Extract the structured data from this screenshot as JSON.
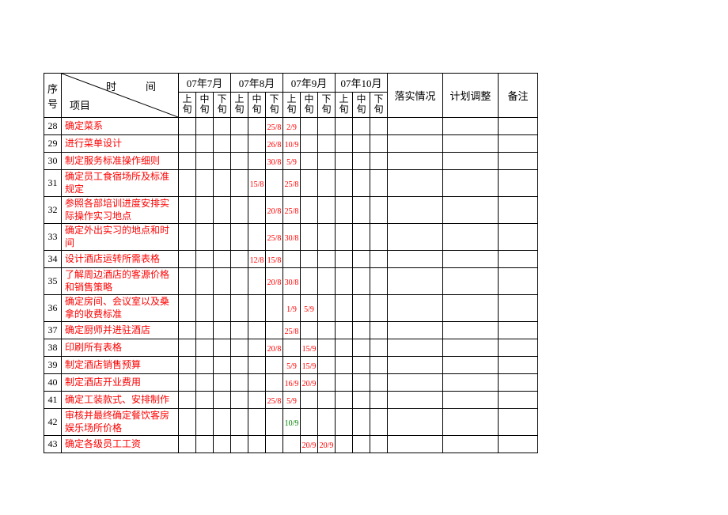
{
  "header": {
    "seq": "序号",
    "time_label": "时　间",
    "proj_label": "项目",
    "months": [
      "07年7月",
      "07年8月",
      "07年9月",
      "07年10月"
    ],
    "xun": [
      "上旬",
      "中旬",
      "下旬"
    ],
    "ls": "落实情况",
    "jh": "计划调整",
    "bz": "备注"
  },
  "rows": [
    {
      "seq": "28",
      "proj": "确定菜系",
      "dates": {
        "5": "25/8",
        "6": "2/9"
      },
      "h": false
    },
    {
      "seq": "29",
      "proj": "进行菜单设计",
      "dates": {
        "5": "26/8",
        "6": "10/9"
      },
      "h": false
    },
    {
      "seq": "30",
      "proj": "制定服务标准操作细则",
      "dates": {
        "5": "30/8",
        "6": "5/9"
      },
      "h": false
    },
    {
      "seq": "31",
      "proj": "确定员工食宿场所及标准规定",
      "dates": {
        "4": "15/8",
        "6": "25/8"
      },
      "h": true
    },
    {
      "seq": "32",
      "proj": "参照各部培训进度安排实际操作实习地点",
      "dates": {
        "5": "20/8",
        "6": "25/8"
      },
      "h": true
    },
    {
      "seq": "33",
      "proj": "确定外出实习的地点和时间",
      "dates": {
        "5": "25/8",
        "6": "30/8"
      },
      "h": true
    },
    {
      "seq": "34",
      "proj": "设计酒店运转所需表格",
      "dates": {
        "4": "12/8",
        "5": "15/8"
      },
      "h": false
    },
    {
      "seq": "35",
      "proj": "了解周边酒店的客源价格和销售策略",
      "dates": {
        "5": "20/8",
        "6": "30/8"
      },
      "h": true
    },
    {
      "seq": "36",
      "proj": "确定房间、会议室以及桑拿的收费标准",
      "dates": {
        "6": "1/9",
        "7": "5/9"
      },
      "h": true
    },
    {
      "seq": "37",
      "proj": "确定厨师并进驻酒店",
      "dates": {
        "6": "25/8"
      },
      "h": false
    },
    {
      "seq": "38",
      "proj": "印刷所有表格",
      "dates": {
        "5": "20/8",
        "7": "15/9"
      },
      "h": false
    },
    {
      "seq": "39",
      "proj": "制定酒店销售预算",
      "dates": {
        "6": "5/9",
        "7": "15/9"
      },
      "h": false
    },
    {
      "seq": "40",
      "proj": "制定酒店开业费用",
      "dates": {
        "6": "16/9",
        "7": "20/9"
      },
      "h": false
    },
    {
      "seq": "41",
      "proj": "确定工装款式、安排制作",
      "dates": {
        "5": "25/8",
        "6": "5/9"
      },
      "h": false
    },
    {
      "seq": "42",
      "proj": "审核并最终确定餐饮客房娱乐场所价格",
      "dates": {
        "6g": "10/9"
      },
      "h": true
    },
    {
      "seq": "43",
      "proj": "确定各级员工工资",
      "dates": {
        "7": "20/9",
        "8": "20/9"
      },
      "h": false
    }
  ]
}
